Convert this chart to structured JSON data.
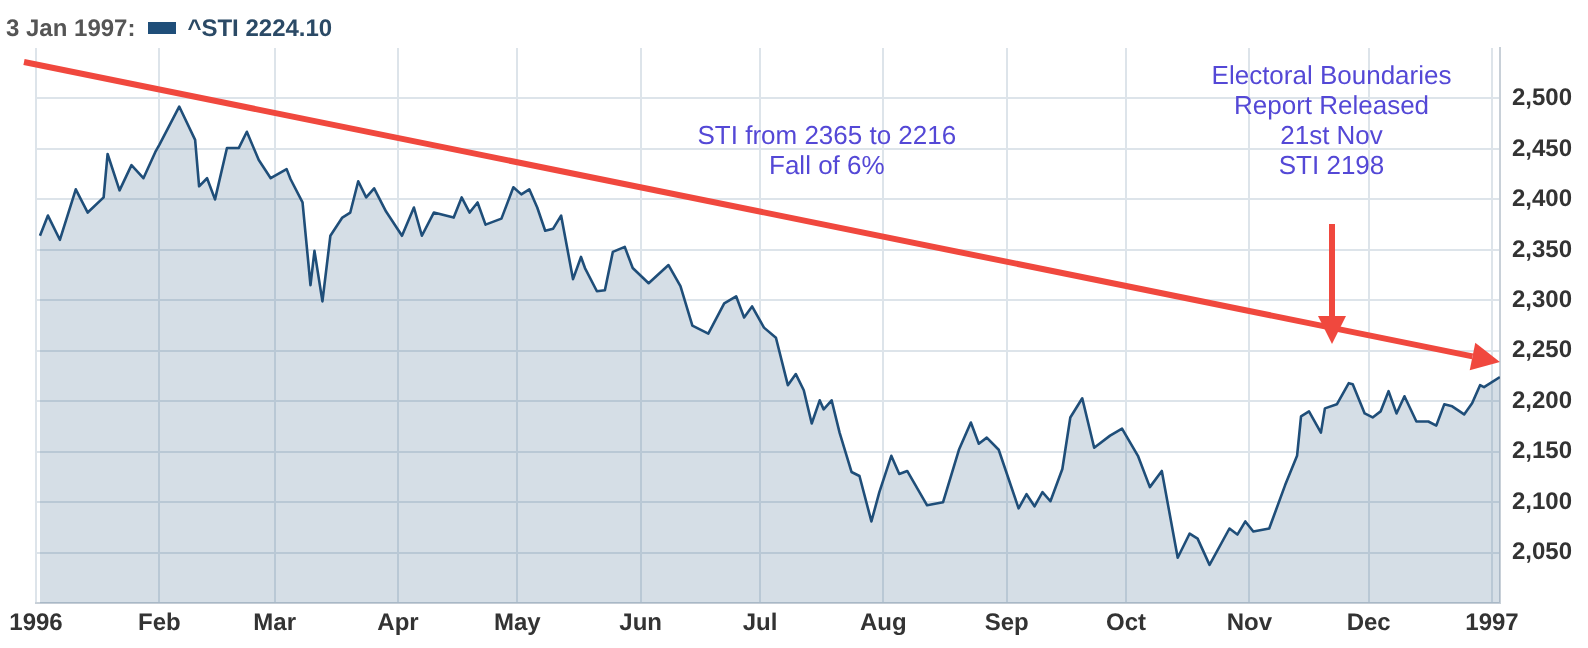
{
  "chart_data": {
    "type": "area",
    "title": "3 Jan 1997:",
    "x": [
      "1996-01-02",
      "1996-01-04",
      "1996-01-07",
      "1996-01-11",
      "1996-01-14",
      "1996-01-18",
      "1996-01-19",
      "1996-01-22",
      "1996-01-25",
      "1996-01-28",
      "1996-01-31",
      "1996-02-01",
      "1996-02-06",
      "1996-02-10",
      "1996-02-11",
      "1996-02-13",
      "1996-02-15",
      "1996-02-18",
      "1996-02-21",
      "1996-02-23",
      "1996-02-26",
      "1996-02-29",
      "1996-03-04",
      "1996-03-05",
      "1996-03-08",
      "1996-03-10",
      "1996-03-11",
      "1996-03-13",
      "1996-03-15",
      "1996-03-18",
      "1996-03-20",
      "1996-03-22",
      "1996-03-24",
      "1996-03-26",
      "1996-03-29",
      "1996-04-02",
      "1996-04-05",
      "1996-04-07",
      "1996-04-10",
      "1996-04-15",
      "1996-04-17",
      "1996-04-19",
      "1996-04-21",
      "1996-04-23",
      "1996-04-27",
      "1996-04-30",
      "1996-05-02",
      "1996-05-04",
      "1996-05-06",
      "1996-05-08",
      "1996-05-10",
      "1996-05-12",
      "1996-05-15",
      "1996-05-17",
      "1996-05-18",
      "1996-05-21",
      "1996-05-23",
      "1996-05-25",
      "1996-05-28",
      "1996-05-30",
      "1996-06-03",
      "1996-06-08",
      "1996-06-11",
      "1996-06-14",
      "1996-06-18",
      "1996-06-22",
      "1996-06-25",
      "1996-06-27",
      "1996-06-29",
      "1996-07-02",
      "1996-07-05",
      "1996-07-08",
      "1996-07-10",
      "1996-07-12",
      "1996-07-14",
      "1996-07-16",
      "1996-07-17",
      "1996-07-19",
      "1996-07-21",
      "1996-07-24",
      "1996-07-26",
      "1996-07-29",
      "1996-07-31",
      "1996-08-03",
      "1996-08-05",
      "1996-08-07",
      "1996-08-12",
      "1996-08-16",
      "1996-08-20",
      "1996-08-23",
      "1996-08-25",
      "1996-08-27",
      "1996-08-30",
      "1996-09-04",
      "1996-09-06",
      "1996-09-08",
      "1996-09-10",
      "1996-09-12",
      "1996-09-15",
      "1996-09-17",
      "1996-09-20",
      "1996-09-23",
      "1996-09-27",
      "1996-09-30",
      "1996-10-04",
      "1996-10-07",
      "1996-10-10",
      "1996-10-14",
      "1996-10-17",
      "1996-10-19",
      "1996-10-22",
      "1996-10-27",
      "1996-10-29",
      "1996-10-31",
      "1996-11-02",
      "1996-11-06",
      "1996-11-10",
      "1996-11-13",
      "1996-11-14",
      "1996-11-16",
      "1996-11-19",
      "1996-11-20",
      "1996-11-23",
      "1996-11-26",
      "1996-11-27",
      "1996-11-30",
      "1996-12-02",
      "1996-12-04",
      "1996-12-06",
      "1996-12-08",
      "1996-12-10",
      "1996-12-13",
      "1996-12-16",
      "1996-12-18",
      "1996-12-20",
      "1996-12-22",
      "1996-12-25",
      "1996-12-27",
      "1996-12-29",
      "1996-12-30",
      "1997-01-03"
    ],
    "series": [
      {
        "name": "^STI 2224.10",
        "color": "#1f4e79",
        "values": [
          2364,
          2384,
          2360,
          2410,
          2387,
          2402,
          2445,
          2409,
          2434,
          2421,
          2447,
          2454,
          2492,
          2459,
          2413,
          2421,
          2400,
          2451,
          2451,
          2467,
          2439,
          2421,
          2430,
          2420,
          2397,
          2315,
          2349,
          2299,
          2364,
          2382,
          2387,
          2418,
          2402,
          2411,
          2388,
          2364,
          2392,
          2364,
          2387,
          2382,
          2402,
          2387,
          2397,
          2375,
          2381,
          2412,
          2405,
          2410,
          2392,
          2369,
          2371,
          2384,
          2321,
          2343,
          2332,
          2309,
          2310,
          2348,
          2353,
          2332,
          2317,
          2335,
          2314,
          2275,
          2267,
          2297,
          2304,
          2283,
          2294,
          2273,
          2263,
          2216,
          2227,
          2211,
          2178,
          2201,
          2192,
          2201,
          2169,
          2130,
          2126,
          2081,
          2110,
          2146,
          2128,
          2131,
          2097,
          2100,
          2152,
          2179,
          2158,
          2164,
          2152,
          2094,
          2108,
          2096,
          2110,
          2101,
          2133,
          2184,
          2203,
          2154,
          2166,
          2173,
          2146,
          2115,
          2131,
          2045,
          2069,
          2064,
          2038,
          2074,
          2068,
          2081,
          2071,
          2074,
          2117,
          2146,
          2185,
          2190,
          2169,
          2193,
          2197,
          2218,
          2217,
          2188,
          2184,
          2190,
          2210,
          2188,
          2205,
          2180,
          2180,
          2176,
          2197,
          2195,
          2187,
          2198,
          2216,
          2214,
          2224
        ]
      }
    ],
    "xlim": [
      "1996-01-01",
      "1997-01-03"
    ],
    "xticks": [
      {
        "value": "1996-01-01",
        "label": "1996"
      },
      {
        "value": "1996-02-01",
        "label": "Feb"
      },
      {
        "value": "1996-03-01",
        "label": "Mar"
      },
      {
        "value": "1996-04-01",
        "label": "Apr"
      },
      {
        "value": "1996-05-01",
        "label": "May"
      },
      {
        "value": "1996-06-01",
        "label": "Jun"
      },
      {
        "value": "1996-07-01",
        "label": "Jul"
      },
      {
        "value": "1996-08-01",
        "label": "Aug"
      },
      {
        "value": "1996-09-01",
        "label": "Sep"
      },
      {
        "value": "1996-10-01",
        "label": "Oct"
      },
      {
        "value": "1996-11-01",
        "label": "Nov"
      },
      {
        "value": "1996-12-01",
        "label": "Dec"
      },
      {
        "value": "1997-01-01",
        "label": "1997"
      }
    ],
    "ylim": [
      2000,
      2550
    ],
    "yticks": [
      {
        "value": 2050,
        "label": "2,050"
      },
      {
        "value": 2100,
        "label": "2,100"
      },
      {
        "value": 2150,
        "label": "2,150"
      },
      {
        "value": 2200,
        "label": "2,200"
      },
      {
        "value": 2250,
        "label": "2,250"
      },
      {
        "value": 2300,
        "label": "2,300"
      },
      {
        "value": 2350,
        "label": "2,350"
      },
      {
        "value": 2400,
        "label": "2,400"
      },
      {
        "value": 2450,
        "label": "2,450"
      },
      {
        "value": 2500,
        "label": "2,500"
      }
    ],
    "grid": true,
    "legend": "top left",
    "marker": "none",
    "annotations": [
      "STI from 2365 to 2216\nFall of 6%",
      "Electoral Boundaries\nReport Released\n21st Nov\nSTI 2198"
    ]
  }
}
